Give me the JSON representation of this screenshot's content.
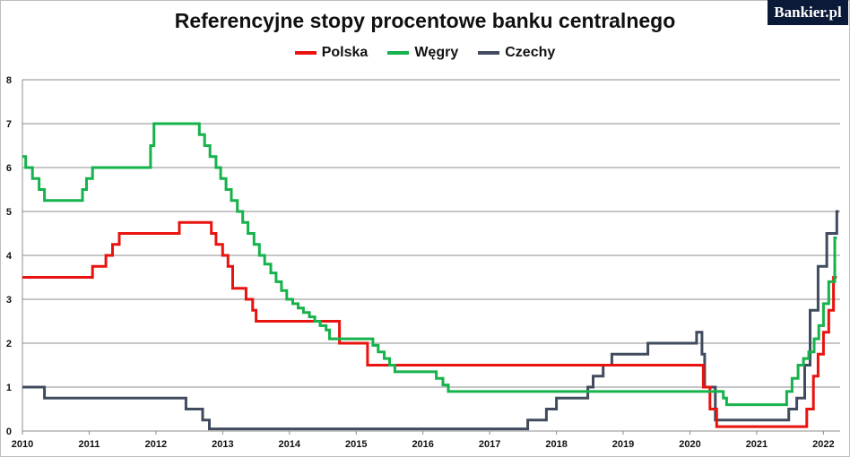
{
  "brand": "Bankier.pl",
  "colors": {
    "Polska": "#e8130f",
    "Węgry": "#16b24b",
    "Czechy": "#404b5e"
  },
  "chart_data": {
    "type": "line",
    "title": "Referencyjne stopy procentowe banku centralnego",
    "xlabel": "",
    "ylabel": "",
    "xlim": [
      2010,
      2022.25
    ],
    "ylim": [
      0,
      8
    ],
    "x_ticks": [
      "2010",
      "2011",
      "2012",
      "2013",
      "2014",
      "2015",
      "2016",
      "2017",
      "2018",
      "2019",
      "2020",
      "2021",
      "2022"
    ],
    "y_ticks": [
      "0",
      "1",
      "2",
      "3",
      "4",
      "5",
      "6",
      "7",
      "8"
    ],
    "grid": true,
    "legend": "top-center",
    "series": [
      {
        "name": "Polska",
        "step": [
          [
            2010.0,
            3.5
          ],
          [
            2011.05,
            3.75
          ],
          [
            2011.25,
            4.0
          ],
          [
            2011.35,
            4.25
          ],
          [
            2011.45,
            4.5
          ],
          [
            2012.35,
            4.75
          ],
          [
            2012.83,
            4.5
          ],
          [
            2012.9,
            4.25
          ],
          [
            2013.0,
            4.0
          ],
          [
            2013.08,
            3.75
          ],
          [
            2013.15,
            3.25
          ],
          [
            2013.35,
            3.0
          ],
          [
            2013.45,
            2.75
          ],
          [
            2013.5,
            2.5
          ],
          [
            2014.75,
            2.0
          ],
          [
            2015.17,
            1.5
          ],
          [
            2020.2,
            1.0
          ],
          [
            2020.3,
            0.5
          ],
          [
            2020.4,
            0.1
          ],
          [
            2021.75,
            0.5
          ],
          [
            2021.85,
            1.25
          ],
          [
            2021.92,
            1.75
          ],
          [
            2022.0,
            2.25
          ],
          [
            2022.08,
            2.75
          ],
          [
            2022.15,
            3.5
          ],
          [
            2022.2,
            3.5
          ]
        ]
      },
      {
        "name": "Węgry",
        "step": [
          [
            2010.0,
            6.25
          ],
          [
            2010.05,
            6.0
          ],
          [
            2010.15,
            5.75
          ],
          [
            2010.25,
            5.5
          ],
          [
            2010.33,
            5.25
          ],
          [
            2010.9,
            5.5
          ],
          [
            2010.96,
            5.75
          ],
          [
            2011.05,
            6.0
          ],
          [
            2011.92,
            6.5
          ],
          [
            2011.97,
            7.0
          ],
          [
            2012.65,
            6.75
          ],
          [
            2012.73,
            6.5
          ],
          [
            2012.81,
            6.25
          ],
          [
            2012.9,
            6.0
          ],
          [
            2012.97,
            5.75
          ],
          [
            2013.05,
            5.5
          ],
          [
            2013.13,
            5.25
          ],
          [
            2013.22,
            5.0
          ],
          [
            2013.3,
            4.75
          ],
          [
            2013.38,
            4.5
          ],
          [
            2013.47,
            4.25
          ],
          [
            2013.55,
            4.0
          ],
          [
            2013.63,
            3.8
          ],
          [
            2013.72,
            3.6
          ],
          [
            2013.8,
            3.4
          ],
          [
            2013.88,
            3.2
          ],
          [
            2013.96,
            3.0
          ],
          [
            2014.05,
            2.9
          ],
          [
            2014.13,
            2.8
          ],
          [
            2014.21,
            2.7
          ],
          [
            2014.3,
            2.6
          ],
          [
            2014.38,
            2.5
          ],
          [
            2014.46,
            2.4
          ],
          [
            2014.55,
            2.3
          ],
          [
            2014.6,
            2.1
          ],
          [
            2015.25,
            1.95
          ],
          [
            2015.33,
            1.8
          ],
          [
            2015.42,
            1.65
          ],
          [
            2015.5,
            1.5
          ],
          [
            2015.58,
            1.35
          ],
          [
            2016.2,
            1.2
          ],
          [
            2016.3,
            1.05
          ],
          [
            2016.38,
            0.9
          ],
          [
            2020.5,
            0.75
          ],
          [
            2020.55,
            0.6
          ],
          [
            2021.45,
            0.9
          ],
          [
            2021.53,
            1.2
          ],
          [
            2021.62,
            1.5
          ],
          [
            2021.7,
            1.65
          ],
          [
            2021.78,
            1.8
          ],
          [
            2021.86,
            2.1
          ],
          [
            2021.93,
            2.4
          ],
          [
            2022.0,
            2.9
          ],
          [
            2022.08,
            3.4
          ],
          [
            2022.17,
            4.4
          ],
          [
            2022.2,
            4.4
          ]
        ]
      },
      {
        "name": "Czechy",
        "step": [
          [
            2010.0,
            1.0
          ],
          [
            2010.33,
            0.75
          ],
          [
            2012.45,
            0.5
          ],
          [
            2012.7,
            0.25
          ],
          [
            2012.8,
            0.05
          ],
          [
            2017.57,
            0.25
          ],
          [
            2017.85,
            0.5
          ],
          [
            2018.0,
            0.75
          ],
          [
            2018.47,
            1.0
          ],
          [
            2018.55,
            1.25
          ],
          [
            2018.7,
            1.5
          ],
          [
            2018.83,
            1.75
          ],
          [
            2019.37,
            2.0
          ],
          [
            2020.1,
            2.25
          ],
          [
            2020.18,
            1.75
          ],
          [
            2020.22,
            1.0
          ],
          [
            2020.38,
            0.25
          ],
          [
            2021.48,
            0.5
          ],
          [
            2021.6,
            0.75
          ],
          [
            2021.72,
            1.5
          ],
          [
            2021.8,
            2.75
          ],
          [
            2021.92,
            3.75
          ],
          [
            2022.05,
            4.5
          ],
          [
            2022.2,
            5.0
          ],
          [
            2022.23,
            5.0
          ]
        ]
      }
    ]
  }
}
